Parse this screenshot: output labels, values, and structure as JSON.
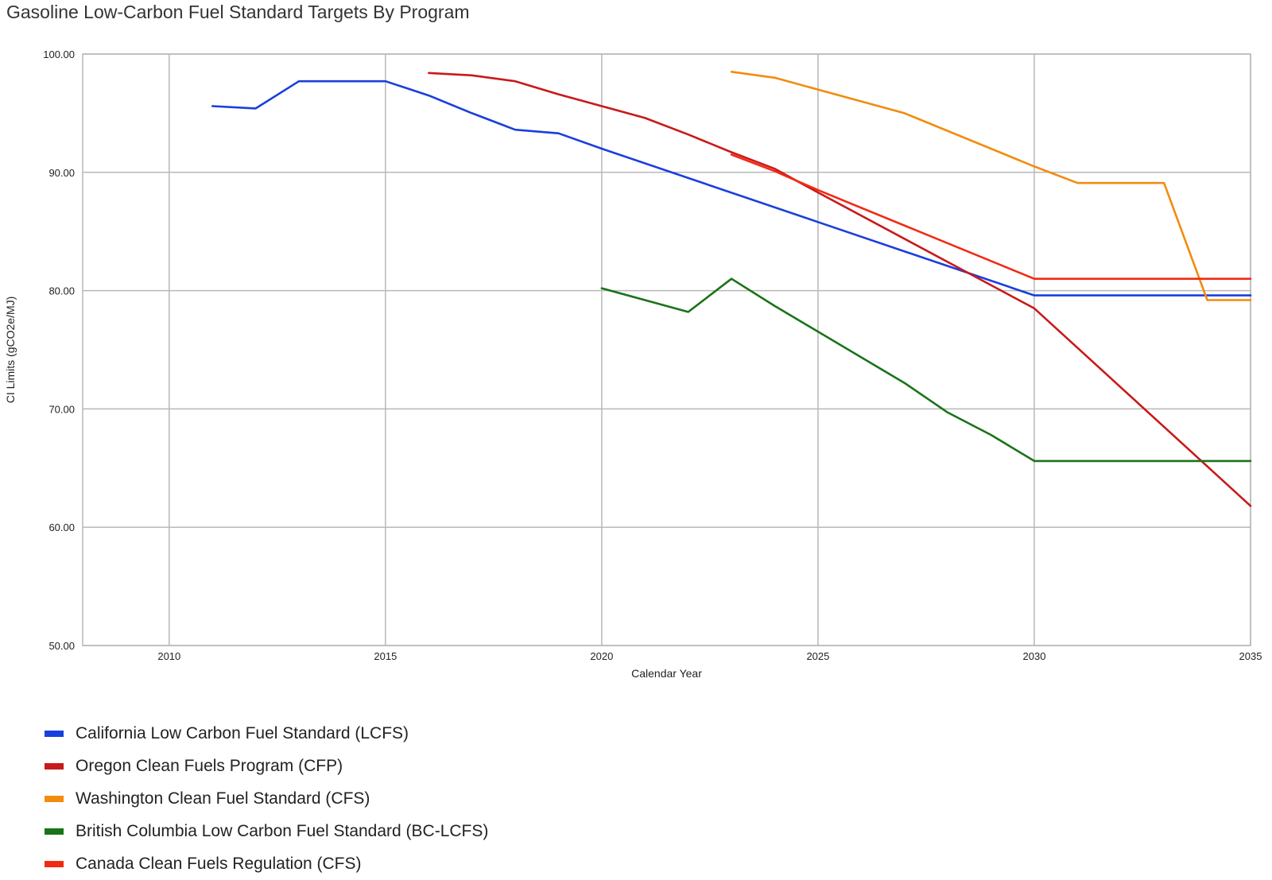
{
  "chart_data": {
    "type": "line",
    "title": "Gasoline Low-Carbon Fuel Standard Targets By Program",
    "xlabel": "Calendar Year",
    "ylabel": "CI Limits (gCO2e/MJ)",
    "xlim": [
      2008,
      2035
    ],
    "ylim": [
      50,
      100
    ],
    "x_ticks": [
      2010,
      2015,
      2020,
      2025,
      2030,
      2035
    ],
    "y_ticks": [
      "50.00",
      "60.00",
      "70.00",
      "80.00",
      "90.00",
      "100.00"
    ],
    "grid": true,
    "legend_position": "bottom",
    "series": [
      {
        "name": "California Low Carbon Fuel Standard (LCFS)",
        "color": "#1a3fdc",
        "points": [
          [
            2011,
            95.6
          ],
          [
            2012,
            95.4
          ],
          [
            2013,
            97.7
          ],
          [
            2014,
            97.7
          ],
          [
            2015,
            97.7
          ],
          [
            2016,
            96.5
          ],
          [
            2017,
            95.0
          ],
          [
            2018,
            93.6
          ],
          [
            2019,
            93.3
          ],
          [
            2020,
            92.0
          ],
          [
            2025,
            85.8
          ],
          [
            2030,
            79.6
          ],
          [
            2035,
            79.6
          ]
        ]
      },
      {
        "name": "Oregon Clean Fuels Program (CFP)",
        "color": "#c81a1a",
        "points": [
          [
            2016,
            98.4
          ],
          [
            2017,
            98.2
          ],
          [
            2018,
            97.7
          ],
          [
            2019,
            96.6
          ],
          [
            2020,
            95.6
          ],
          [
            2021,
            94.6
          ],
          [
            2022,
            93.2
          ],
          [
            2023,
            91.7
          ],
          [
            2024,
            90.3
          ],
          [
            2025,
            88.3
          ],
          [
            2030,
            78.5
          ],
          [
            2035,
            61.8
          ]
        ]
      },
      {
        "name": "Washington Clean Fuel Standard (CFS)",
        "color": "#f28c0f",
        "points": [
          [
            2023,
            98.5
          ],
          [
            2024,
            98.0
          ],
          [
            2027,
            95.0
          ],
          [
            2030,
            90.5
          ],
          [
            2031,
            89.1
          ],
          [
            2033,
            89.1
          ],
          [
            2034,
            79.2
          ],
          [
            2035,
            79.2
          ]
        ]
      },
      {
        "name": "British Columbia Low Carbon Fuel Standard (BC-LCFS)",
        "color": "#1a731a",
        "points": [
          [
            2020,
            80.2
          ],
          [
            2022,
            78.2
          ],
          [
            2023,
            81.0
          ],
          [
            2024,
            78.7
          ],
          [
            2027,
            72.2
          ],
          [
            2028,
            69.7
          ],
          [
            2029,
            67.8
          ],
          [
            2030,
            65.6
          ],
          [
            2035,
            65.6
          ]
        ]
      },
      {
        "name": "Canada Clean Fuels Regulation (CFS)",
        "color": "#f22a14",
        "points": [
          [
            2023,
            91.5
          ],
          [
            2024,
            90.1
          ],
          [
            2025,
            88.5
          ],
          [
            2030,
            81.0
          ],
          [
            2035,
            81.0
          ]
        ]
      }
    ]
  }
}
